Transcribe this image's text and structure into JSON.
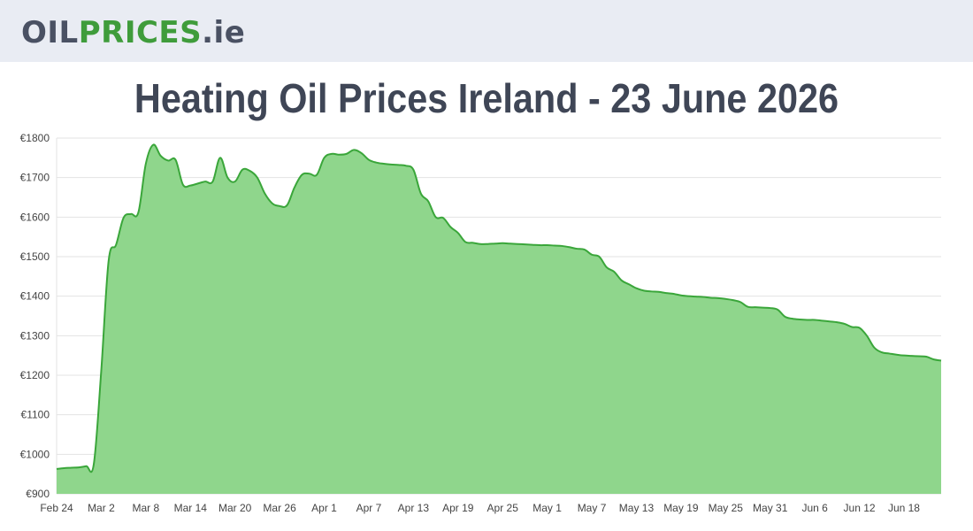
{
  "logo": {
    "part1": "OIL",
    "part2": "PRICES",
    "part3": ".ie"
  },
  "page_title": "Heating Oil Prices Ireland - 23 June 2026",
  "colors": {
    "line": "#3aa63a",
    "fill": "#8fd68c",
    "grid": "#e3e3e3",
    "logo_green": "#3f9c3b",
    "logo_gray": "#4a5163"
  },
  "chart_data": {
    "type": "area",
    "title": "",
    "xlabel": "",
    "ylabel": "",
    "ylim": [
      900,
      1800
    ],
    "yticks": [
      900,
      1000,
      1100,
      1200,
      1300,
      1400,
      1500,
      1600,
      1700,
      1800
    ],
    "ytick_labels": [
      "€900",
      "€1000",
      "€1100",
      "€1200",
      "€1300",
      "€1400",
      "€1500",
      "€1600",
      "€1700",
      "€1800"
    ],
    "xtick_labels": [
      "Feb 24",
      "Mar 2",
      "Mar 8",
      "Mar 14",
      "Mar 20",
      "Mar 26",
      "Apr 1",
      "Apr 7",
      "Apr 13",
      "Apr 19",
      "Apr 25",
      "May 1",
      "May 7",
      "May 13",
      "May 19",
      "May 25",
      "May 31",
      "Jun 6",
      "Jun 12",
      "Jun 18"
    ],
    "x": [
      "Feb 24",
      "Feb 25",
      "Feb 26",
      "Feb 27",
      "Feb 28",
      "Mar 1",
      "Mar 2",
      "Mar 3",
      "Mar 4",
      "Mar 5",
      "Mar 6",
      "Mar 7",
      "Mar 8",
      "Mar 9",
      "Mar 10",
      "Mar 11",
      "Mar 12",
      "Mar 13",
      "Mar 14",
      "Mar 15",
      "Mar 16",
      "Mar 17",
      "Mar 18",
      "Mar 19",
      "Mar 20",
      "Mar 21",
      "Mar 22",
      "Mar 23",
      "Mar 24",
      "Mar 25",
      "Mar 26",
      "Mar 27",
      "Mar 28",
      "Mar 29",
      "Mar 30",
      "Mar 31",
      "Apr 1",
      "Apr 2",
      "Apr 3",
      "Apr 4",
      "Apr 5",
      "Apr 6",
      "Apr 7",
      "Apr 8",
      "Apr 9",
      "Apr 10",
      "Apr 11",
      "Apr 12",
      "Apr 13",
      "Apr 14",
      "Apr 15",
      "Apr 16",
      "Apr 17",
      "Apr 18",
      "Apr 19",
      "Apr 20",
      "Apr 21",
      "Apr 22",
      "Apr 23",
      "Apr 24",
      "Apr 25",
      "Apr 26",
      "Apr 27",
      "Apr 28",
      "Apr 29",
      "Apr 30",
      "May 1",
      "May 2",
      "May 3",
      "May 4",
      "May 5",
      "May 6",
      "May 7",
      "May 8",
      "May 9",
      "May 10",
      "May 11",
      "May 12",
      "May 13",
      "May 14",
      "May 15",
      "May 16",
      "May 17",
      "May 18",
      "May 19",
      "May 20",
      "May 21",
      "May 22",
      "May 23",
      "May 24",
      "May 25",
      "May 26",
      "May 27",
      "May 28",
      "May 29",
      "May 30",
      "May 31",
      "Jun 1",
      "Jun 2",
      "Jun 3",
      "Jun 4",
      "Jun 5",
      "Jun 6",
      "Jun 7",
      "Jun 8",
      "Jun 9",
      "Jun 10",
      "Jun 11",
      "Jun 12",
      "Jun 13",
      "Jun 14",
      "Jun 15",
      "Jun 16",
      "Jun 17",
      "Jun 18",
      "Jun 19",
      "Jun 20",
      "Jun 21",
      "Jun 22",
      "Jun 23"
    ],
    "series": [
      {
        "values": [
          963,
          965,
          966,
          967,
          970,
          975,
          1210,
          1490,
          1530,
          1598,
          1608,
          1612,
          1735,
          1783,
          1755,
          1743,
          1745,
          1682,
          1680,
          1685,
          1690,
          1690,
          1750,
          1700,
          1690,
          1720,
          1717,
          1700,
          1660,
          1635,
          1628,
          1630,
          1675,
          1707,
          1710,
          1707,
          1750,
          1760,
          1758,
          1760,
          1770,
          1762,
          1745,
          1738,
          1735,
          1733,
          1732,
          1730,
          1720,
          1660,
          1640,
          1600,
          1598,
          1575,
          1560,
          1537,
          1535,
          1532,
          1532,
          1533,
          1534,
          1533,
          1532,
          1531,
          1530,
          1529,
          1529,
          1528,
          1527,
          1524,
          1520,
          1518,
          1505,
          1500,
          1473,
          1462,
          1440,
          1430,
          1420,
          1414,
          1412,
          1411,
          1408,
          1406,
          1402,
          1400,
          1399,
          1398,
          1396,
          1395,
          1393,
          1390,
          1385,
          1373,
          1372,
          1371,
          1370,
          1366,
          1348,
          1343,
          1341,
          1340,
          1340,
          1338,
          1336,
          1334,
          1330,
          1322,
          1320,
          1300,
          1270,
          1258,
          1255,
          1252,
          1250,
          1249,
          1248,
          1247,
          1240,
          1237
        ]
      }
    ],
    "grid": true,
    "legend": "none"
  }
}
